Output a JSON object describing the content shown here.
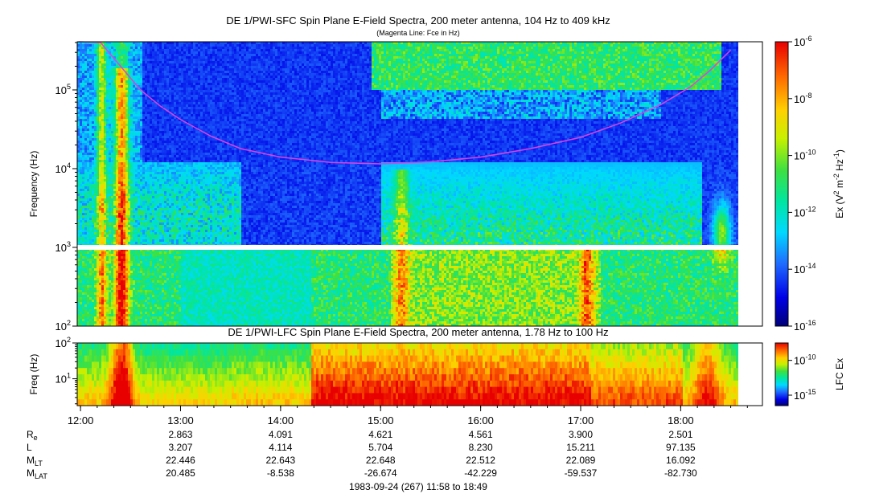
{
  "chart_data": [
    {
      "type": "heatmap",
      "name": "sfc",
      "title": "DE 1/PWI-SFC  Spin Plane E-Field Spectra, 200 meter antenna, 104 Hz to 409 kHz",
      "subtitle": "(Magenta Line: Fce in Hz)",
      "ylabel": "Frequency (Hz)",
      "yscale": "log",
      "ylim": [
        100,
        409000
      ],
      "yticks": [
        {
          "base": "10",
          "exp": "2"
        },
        {
          "base": "10",
          "exp": "3"
        },
        {
          "base": "10",
          "exp": "4"
        },
        {
          "base": "10",
          "exp": "5"
        }
      ],
      "data_gap_hz": 1000,
      "fce_line": {
        "color": "#e040e0",
        "points": [
          [
            11.98,
            460000
          ],
          [
            12.2,
            400000
          ],
          [
            12.4,
            200000
          ],
          [
            12.6,
            100000
          ],
          [
            12.8,
            62000
          ],
          [
            13.0,
            42000
          ],
          [
            13.3,
            26000
          ],
          [
            13.6,
            18000
          ],
          [
            14.0,
            14000
          ],
          [
            14.5,
            12000
          ],
          [
            15.0,
            11500
          ],
          [
            15.5,
            12200
          ],
          [
            16.0,
            14000
          ],
          [
            16.5,
            18000
          ],
          [
            17.0,
            25000
          ],
          [
            17.4,
            38000
          ],
          [
            17.8,
            65000
          ],
          [
            18.1,
            110000
          ],
          [
            18.3,
            180000
          ],
          [
            18.5,
            320000
          ],
          [
            18.65,
            400000
          ]
        ]
      },
      "colorbar": {
        "label_parts": [
          "Ex (V",
          "2",
          " m",
          "-2",
          " Hz",
          "-1",
          ")"
        ],
        "scale": "log",
        "range": [
          -16,
          -6
        ],
        "ticks": [
          {
            "base": "10",
            "exp": "-6"
          },
          {
            "base": "10",
            "exp": "-8"
          },
          {
            "base": "10",
            "exp": "-10"
          },
          {
            "base": "10",
            "exp": "-12"
          },
          {
            "base": "10",
            "exp": "-14"
          },
          {
            "base": "10",
            "exp": "-16"
          }
        ]
      }
    },
    {
      "type": "heatmap",
      "name": "lfc",
      "title": "DE 1/PWI-LFC  Spin Plane E-Field Spectra, 200 meter antenna, 1.78 Hz to 100 Hz",
      "ylabel": "Freq (Hz)",
      "yscale": "log",
      "ylim": [
        1.78,
        100
      ],
      "yticks": [
        {
          "base": "10",
          "exp": "1"
        },
        {
          "base": "10",
          "exp": "2"
        }
      ],
      "colorbar": {
        "label": "LFC Ex",
        "scale": "log",
        "range": [
          -16.5,
          -7.5
        ],
        "ticks": [
          {
            "base": "10",
            "exp": "-10"
          },
          {
            "base": "10",
            "exp": "-15"
          }
        ]
      }
    }
  ],
  "time_axis": {
    "unit": "hours UT",
    "range": [
      11.967,
      18.817
    ],
    "ticks": [
      "12:00",
      "13:00",
      "14:00",
      "15:00",
      "16:00",
      "17:00",
      "18:00"
    ]
  },
  "ephemeris": {
    "rows": [
      {
        "main": "R",
        "sub": "e",
        "values": [
          "2.863",
          "4.091",
          "4.621",
          "4.561",
          "3.900",
          "2.501"
        ]
      },
      {
        "main": "L",
        "sub": "",
        "values": [
          "3.207",
          "4.114",
          "5.704",
          "8.230",
          "15.211",
          "97.135"
        ]
      },
      {
        "main": "M",
        "sub": "LT",
        "values": [
          "22.446",
          "22.643",
          "22.648",
          "22.512",
          "22.089",
          "16.092"
        ]
      },
      {
        "main": "M",
        "sub": "LAT",
        "values": [
          "20.485",
          "-8.538",
          "-26.674",
          "-42.229",
          "-59.537",
          "-82.730"
        ]
      }
    ]
  },
  "footer": "1983-09-24 (267) 11:58 to 18:49"
}
